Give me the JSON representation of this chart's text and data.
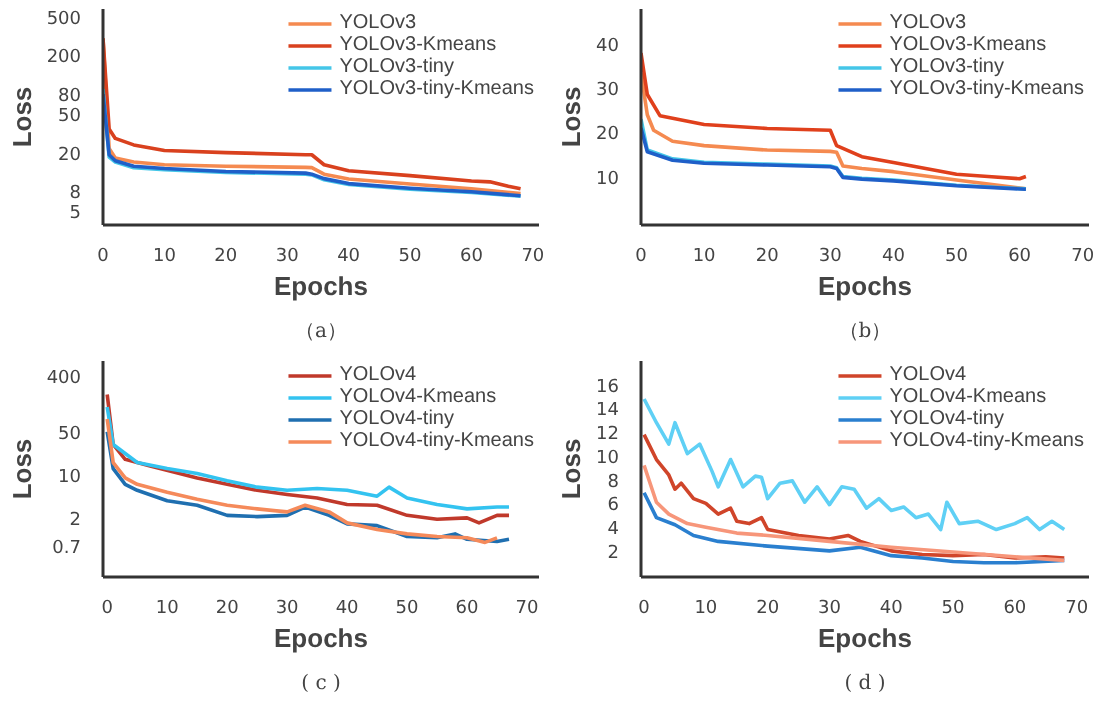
{
  "chart_data": [
    {
      "type": "line",
      "title": "（a）",
      "xlabel": "Epochs",
      "ylabel": "Loss",
      "log": "y",
      "legend": "top right",
      "xlim": [
        0,
        71
      ],
      "ylim": [
        3.6,
        600
      ],
      "xticks": [
        0,
        10,
        20,
        30,
        40,
        50,
        60,
        70
      ],
      "yticks": [
        5,
        8,
        20,
        50,
        80,
        200,
        500
      ],
      "series": [
        {
          "name": "YOLOv3",
          "color": "#f58a50",
          "x": [
            0,
            1,
            2,
            5,
            10,
            20,
            33,
            34,
            36,
            40,
            50,
            60,
            68
          ],
          "values": [
            300,
            22,
            17.6,
            16,
            15,
            14.5,
            14.1,
            14,
            12,
            10.7,
            9.5,
            8.5,
            7.6
          ]
        },
        {
          "name": "YOLOv3-Kmeans",
          "color": "#d9411e",
          "x": [
            0,
            1,
            2,
            5,
            10,
            20,
            33,
            34,
            36,
            40,
            50,
            60,
            63,
            66,
            68
          ],
          "values": [
            300,
            35,
            28,
            24,
            21,
            20,
            19,
            19,
            15,
            13,
            11.6,
            10.2,
            10,
            9,
            8.5
          ]
        },
        {
          "name": "YOLOv3-tiny",
          "color": "#44c6e8",
          "x": [
            0,
            1,
            2,
            5,
            10,
            20,
            33,
            34,
            36,
            40,
            50,
            60,
            68
          ],
          "values": [
            90,
            18,
            16,
            14,
            13.3,
            12.5,
            12,
            11.8,
            10.5,
            9.4,
            8.4,
            7.8,
            7.1
          ]
        },
        {
          "name": "YOLOv3-tiny-Kmeans",
          "color": "#1f5fc8",
          "x": [
            0,
            1,
            2,
            5,
            10,
            20,
            33,
            34,
            36,
            40,
            50,
            60,
            68
          ],
          "values": [
            80,
            19,
            16.5,
            14.5,
            13.7,
            12.8,
            12.3,
            12,
            10.8,
            9.6,
            8.6,
            7.9,
            7.2
          ]
        }
      ]
    },
    {
      "type": "line",
      "title": "（b）",
      "xlabel": "Epochs",
      "ylabel": "Loss",
      "legend": "top right",
      "xlim": [
        0,
        71
      ],
      "ylim": [
        -1,
        48
      ],
      "xticks": [
        0,
        10,
        20,
        30,
        40,
        50,
        60,
        70
      ],
      "yticks": [
        10,
        20,
        30,
        40
      ],
      "series": [
        {
          "name": "YOLOv3",
          "color": "#f58a50",
          "x": [
            0,
            1,
            2,
            5,
            10,
            20,
            30,
            31,
            32,
            35,
            40,
            50,
            61
          ],
          "values": [
            33.5,
            24,
            20.5,
            18,
            17,
            16,
            15.7,
            15.5,
            12.4,
            11.8,
            11.1,
            9.2,
            7.2
          ]
        },
        {
          "name": "YOLOv3-Kmeans",
          "color": "#e0401c",
          "x": [
            0,
            1,
            3,
            10,
            20,
            30,
            31,
            35,
            40,
            50,
            55,
            60,
            61
          ],
          "values": [
            38,
            28.6,
            23.8,
            21.8,
            20.9,
            20.5,
            17,
            14.5,
            13.2,
            10.5,
            10,
            9.5,
            10
          ]
        },
        {
          "name": "YOLOv3-tiny",
          "color": "#44c6e8",
          "x": [
            0,
            1,
            5,
            10,
            20,
            30,
            31,
            32,
            35,
            40,
            50,
            61
          ],
          "values": [
            23,
            16,
            14,
            13.2,
            12.8,
            12.4,
            12,
            10,
            9.6,
            9.2,
            8,
            7.2
          ]
        },
        {
          "name": "YOLOv3-tiny-Kmeans",
          "color": "#1f5fc8",
          "x": [
            0,
            1,
            5,
            10,
            20,
            30,
            31,
            32,
            35,
            40,
            50,
            61
          ],
          "values": [
            21,
            15.6,
            13.7,
            13,
            12.6,
            12.2,
            11.8,
            9.8,
            9.4,
            9,
            7.9,
            7.1
          ]
        }
      ]
    },
    {
      "type": "line",
      "title": "( c )",
      "xlabel": "Epochs",
      "ylabel": "Loss",
      "log": "y",
      "legend": "top right",
      "xlim": [
        -0.7,
        72
      ],
      "ylim": [
        0.22,
        700
      ],
      "xticks": [
        0,
        10,
        20,
        30,
        40,
        50,
        60,
        70
      ],
      "yticks": [
        0.7,
        2,
        10,
        50,
        400
      ],
      "series": [
        {
          "name": "YOLOv4",
          "color": "#c0392b",
          "x": [
            0,
            1,
            3,
            7,
            15,
            20,
            25,
            30,
            35,
            40,
            45,
            50,
            55,
            60,
            62,
            65,
            67
          ],
          "values": [
            200,
            31,
            17.8,
            14,
            8.9,
            7,
            5.6,
            4.8,
            4.2,
            3.3,
            3.2,
            2.2,
            1.9,
            2,
            1.66,
            2.2,
            2.2
          ]
        },
        {
          "name": "YOLOv4-Kmeans",
          "color": "#33c3f0",
          "x": [
            0,
            1,
            5,
            10,
            15,
            20,
            25,
            30,
            35,
            40,
            45,
            47,
            50,
            55,
            60,
            65,
            67
          ],
          "values": [
            126,
            31,
            15.8,
            12.6,
            10.5,
            8,
            6.3,
            5.6,
            6,
            5.6,
            4.5,
            6.3,
            4.2,
            3.3,
            2.8,
            3,
            3
          ]
        },
        {
          "name": "YOLOv4-tiny",
          "color": "#1f6fb0",
          "x": [
            0,
            1,
            3,
            5,
            10,
            15,
            20,
            25,
            30,
            33,
            37,
            40,
            45,
            50,
            55,
            58,
            60,
            65,
            67
          ],
          "values": [
            50,
            12.6,
            7,
            5.6,
            3.8,
            3.2,
            2.2,
            2.1,
            2.2,
            3,
            2.2,
            1.6,
            1.5,
            1,
            0.95,
            1.1,
            0.9,
            0.83,
            0.9
          ]
        },
        {
          "name": "YOLOv4-tiny-Kmeans",
          "color": "#f58a5a",
          "x": [
            0,
            1,
            3,
            5,
            10,
            15,
            20,
            25,
            30,
            33,
            37,
            40,
            45,
            50,
            55,
            60,
            63,
            65
          ],
          "values": [
            80,
            15.8,
            8.9,
            7,
            5.2,
            4,
            3.2,
            2.8,
            2.5,
            3.2,
            2.5,
            1.66,
            1.3,
            1.1,
            1,
            0.95,
            0.8,
            0.95
          ]
        }
      ]
    },
    {
      "type": "line",
      "title": "( d )",
      "xlabel": "Epochs",
      "ylabel": "Loss",
      "legend": "top right",
      "xlim": [
        -0.5,
        72
      ],
      "ylim": [
        -0.2,
        18
      ],
      "xticks": [
        0,
        10,
        20,
        30,
        40,
        50,
        60,
        70
      ],
      "yticks": [
        2,
        4,
        6,
        8,
        10,
        12,
        14,
        16
      ],
      "series": [
        {
          "name": "YOLOv4",
          "color": "#d0452a",
          "x": [
            0,
            2,
            4,
            5,
            6,
            8,
            10,
            12,
            14,
            15,
            17,
            19,
            20,
            25,
            30,
            33,
            35,
            40,
            45,
            50,
            55,
            60,
            65,
            68
          ],
          "values": [
            11.8,
            9.7,
            8.4,
            7.2,
            7.7,
            6.4,
            6,
            5.1,
            5.6,
            4.5,
            4.3,
            4.8,
            3.8,
            3.3,
            3,
            3.3,
            2.8,
            2,
            1.7,
            1.6,
            1.7,
            1.4,
            1.5,
            1.4
          ]
        },
        {
          "name": "YOLOv4-Kmeans",
          "color": "#5fd0f5",
          "x": [
            0,
            2,
            4,
            5,
            7,
            9,
            11,
            12,
            14,
            16,
            18,
            19,
            20,
            22,
            24,
            26,
            28,
            30,
            32,
            34,
            36,
            38,
            40,
            42,
            44,
            46,
            48,
            49,
            51,
            54,
            57,
            60,
            62,
            64,
            66,
            68
          ],
          "values": [
            14.8,
            12.8,
            11,
            12.8,
            10.2,
            11,
            8.7,
            7.4,
            9.7,
            7.4,
            8.3,
            8.2,
            6.4,
            7.7,
            7.9,
            6.1,
            7.4,
            5.9,
            7.4,
            7.2,
            5.6,
            6.4,
            5.4,
            5.7,
            4.8,
            5.1,
            3.8,
            6.1,
            4.3,
            4.5,
            3.8,
            4.3,
            4.8,
            3.8,
            4.5,
            3.8
          ]
        },
        {
          "name": "YOLOv4-tiny",
          "color": "#2a7fcf",
          "x": [
            0,
            2,
            5,
            8,
            12,
            20,
            30,
            35,
            40,
            45,
            50,
            55,
            60,
            68
          ],
          "values": [
            6.9,
            4.8,
            4.2,
            3.3,
            2.8,
            2.4,
            2,
            2.3,
            1.6,
            1.4,
            1.1,
            1,
            1,
            1.2
          ]
        },
        {
          "name": "YOLOv4-tiny-Kmeans",
          "color": "#f7967a",
          "x": [
            0,
            2,
            4,
            7,
            10,
            15,
            20,
            30,
            40,
            50,
            60,
            68
          ],
          "values": [
            9.2,
            6.1,
            5.1,
            4.3,
            4,
            3.5,
            3.3,
            2.8,
            2.3,
            1.9,
            1.5,
            1.2
          ]
        }
      ]
    }
  ]
}
